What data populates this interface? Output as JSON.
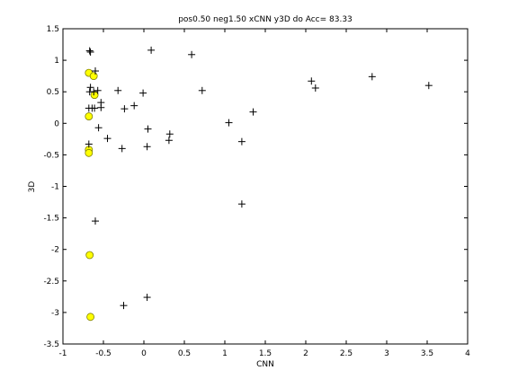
{
  "chart_data": {
    "type": "scatter",
    "title": "pos0.50 neg1.50 xCNN y3D do Acc= 83.33",
    "xlabel": "CNN",
    "ylabel": "3D",
    "xlim": [
      -1,
      4
    ],
    "ylim": [
      -3.5,
      1.5
    ],
    "xticks": [
      -1,
      -0.5,
      0,
      0.5,
      1,
      1.5,
      2,
      2.5,
      3,
      3.5,
      4
    ],
    "yticks": [
      -3.5,
      -3,
      -2.5,
      -2,
      -1.5,
      -1,
      -0.5,
      0,
      0.5,
      1,
      1.5
    ],
    "xtick_labels": [
      "-1",
      "-0.5",
      "0",
      "0.5",
      "1",
      "1.5",
      "2",
      "2.5",
      "3",
      "3.5",
      "4"
    ],
    "ytick_labels": [
      "-3.5",
      "-3",
      "-2.5",
      "-2",
      "-1.5",
      "-1",
      "-0.5",
      "0",
      "0.5",
      "1",
      "1.5"
    ],
    "grid": false,
    "colors": {
      "circle_fill": "#ffff00",
      "circle_stroke": "#7f7f00",
      "plus": "#000000"
    },
    "series": [
      {
        "marker": "circle",
        "points": [
          [
            -0.68,
            0.8
          ],
          [
            -0.62,
            0.75
          ],
          [
            -0.61,
            0.45
          ],
          [
            -0.68,
            0.11
          ],
          [
            -0.68,
            -0.42
          ],
          [
            -0.68,
            -0.47
          ],
          [
            -0.67,
            -2.09
          ],
          [
            -0.66,
            -3.07
          ]
        ]
      },
      {
        "marker": "plus",
        "points": [
          [
            -0.67,
            1.15
          ],
          [
            -0.66,
            1.13
          ],
          [
            -0.6,
            0.83
          ],
          [
            -0.66,
            0.57
          ],
          [
            -0.67,
            0.5
          ],
          [
            -0.62,
            0.5
          ],
          [
            -0.57,
            0.52
          ],
          [
            -0.32,
            0.52
          ],
          [
            -0.01,
            0.48
          ],
          [
            -0.53,
            0.33
          ],
          [
            -0.53,
            0.25
          ],
          [
            -0.64,
            0.24
          ],
          [
            -0.61,
            0.24
          ],
          [
            -0.68,
            0.24
          ],
          [
            -0.12,
            0.28
          ],
          [
            -0.24,
            0.23
          ],
          [
            -0.56,
            -0.07
          ],
          [
            -0.45,
            -0.24
          ],
          [
            -0.68,
            -0.33
          ],
          [
            -0.27,
            -0.4
          ],
          [
            0.04,
            -0.37
          ],
          [
            0.05,
            -0.09
          ],
          [
            0.31,
            -0.27
          ],
          [
            0.32,
            -0.17
          ],
          [
            0.09,
            1.16
          ],
          [
            0.59,
            1.09
          ],
          [
            0.72,
            0.52
          ],
          [
            1.05,
            0.01
          ],
          [
            1.21,
            -0.29
          ],
          [
            1.35,
            0.18
          ],
          [
            1.21,
            -1.28
          ],
          [
            -0.6,
            -1.55
          ],
          [
            0.04,
            -2.76
          ],
          [
            -0.25,
            -2.89
          ],
          [
            2.07,
            0.67
          ],
          [
            2.12,
            0.56
          ],
          [
            2.82,
            0.74
          ],
          [
            3.52,
            0.6
          ]
        ]
      }
    ]
  }
}
